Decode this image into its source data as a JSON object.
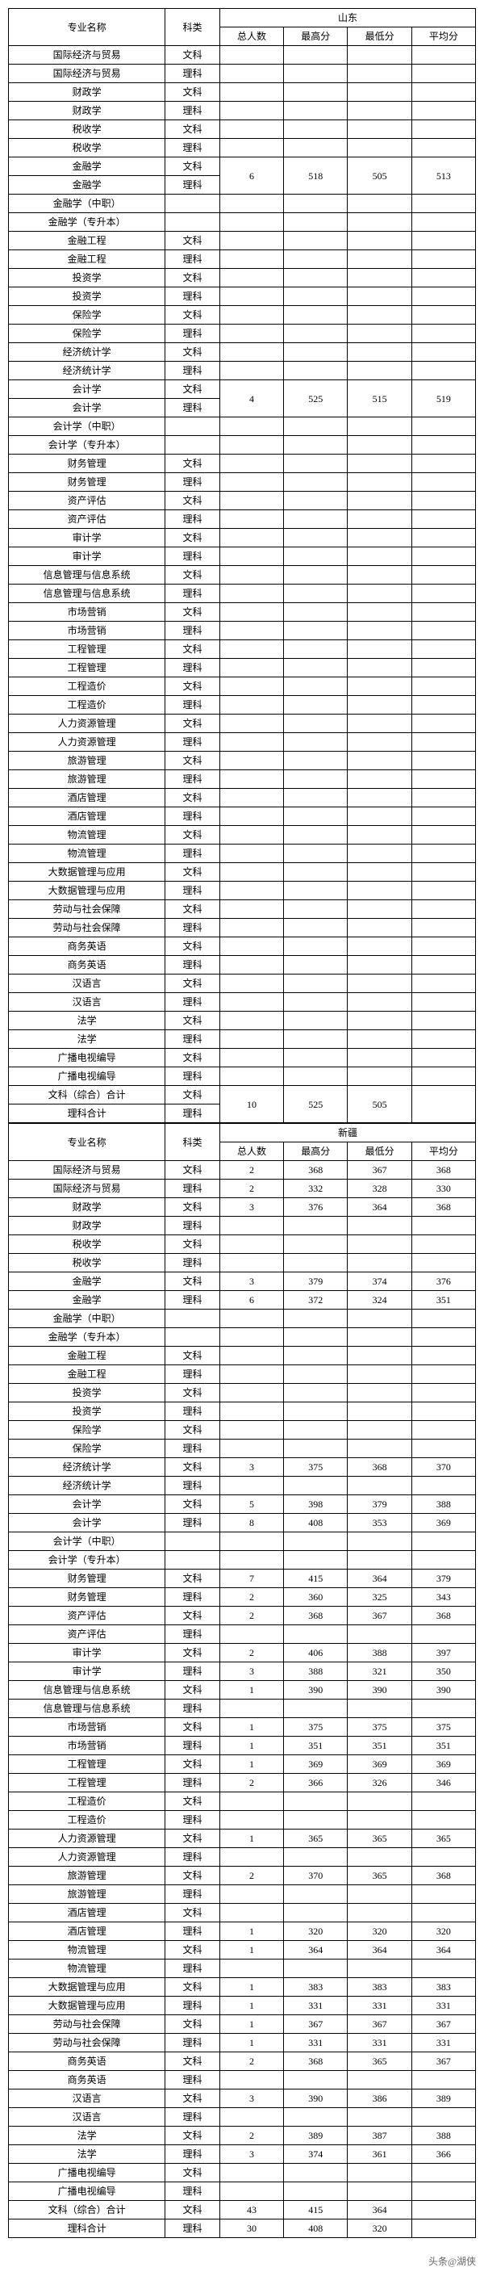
{
  "headers": {
    "major": "专业名称",
    "category": "科类",
    "total": "总人数",
    "max": "最高分",
    "min": "最低分",
    "avg": "平均分"
  },
  "regions": [
    {
      "name": "山东",
      "rows": [
        {
          "major": "国际经济与贸易",
          "cat": "文科",
          "t": "",
          "mx": "",
          "mn": "",
          "av": ""
        },
        {
          "major": "国际经济与贸易",
          "cat": "理科",
          "t": "",
          "mx": "",
          "mn": "",
          "av": ""
        },
        {
          "major": "财政学",
          "cat": "文科",
          "t": "",
          "mx": "",
          "mn": "",
          "av": ""
        },
        {
          "major": "财政学",
          "cat": "理科",
          "t": "",
          "mx": "",
          "mn": "",
          "av": ""
        },
        {
          "major": "税收学",
          "cat": "文科",
          "t": "",
          "mx": "",
          "mn": "",
          "av": ""
        },
        {
          "major": "税收学",
          "cat": "理科",
          "t": "",
          "mx": "",
          "mn": "",
          "av": ""
        },
        {
          "major": "金融学",
          "cat": "文科",
          "t": "6",
          "mx": "518",
          "mn": "505",
          "av": "513",
          "rowspan": 2
        },
        {
          "major": "金融学",
          "cat": "理科"
        },
        {
          "major": "金融学（中职）",
          "cat": "",
          "t": "",
          "mx": "",
          "mn": "",
          "av": ""
        },
        {
          "major": "金融学（专升本）",
          "cat": "",
          "t": "",
          "mx": "",
          "mn": "",
          "av": ""
        },
        {
          "major": "金融工程",
          "cat": "文科",
          "t": "",
          "mx": "",
          "mn": "",
          "av": ""
        },
        {
          "major": "金融工程",
          "cat": "理科",
          "t": "",
          "mx": "",
          "mn": "",
          "av": ""
        },
        {
          "major": "投资学",
          "cat": "文科",
          "t": "",
          "mx": "",
          "mn": "",
          "av": ""
        },
        {
          "major": "投资学",
          "cat": "理科",
          "t": "",
          "mx": "",
          "mn": "",
          "av": ""
        },
        {
          "major": "保险学",
          "cat": "文科",
          "t": "",
          "mx": "",
          "mn": "",
          "av": ""
        },
        {
          "major": "保险学",
          "cat": "理科",
          "t": "",
          "mx": "",
          "mn": "",
          "av": ""
        },
        {
          "major": "经济统计学",
          "cat": "文科",
          "t": "",
          "mx": "",
          "mn": "",
          "av": ""
        },
        {
          "major": "经济统计学",
          "cat": "理科",
          "t": "",
          "mx": "",
          "mn": "",
          "av": ""
        },
        {
          "major": "会计学",
          "cat": "文科",
          "t": "4",
          "mx": "525",
          "mn": "515",
          "av": "519",
          "rowspan": 2
        },
        {
          "major": "会计学",
          "cat": "理科"
        },
        {
          "major": "会计学（中职）",
          "cat": "",
          "t": "",
          "mx": "",
          "mn": "",
          "av": ""
        },
        {
          "major": "会计学（专升本）",
          "cat": "",
          "t": "",
          "mx": "",
          "mn": "",
          "av": ""
        },
        {
          "major": "财务管理",
          "cat": "文科",
          "t": "",
          "mx": "",
          "mn": "",
          "av": ""
        },
        {
          "major": "财务管理",
          "cat": "理科",
          "t": "",
          "mx": "",
          "mn": "",
          "av": ""
        },
        {
          "major": "资产评估",
          "cat": "文科",
          "t": "",
          "mx": "",
          "mn": "",
          "av": ""
        },
        {
          "major": "资产评估",
          "cat": "理科",
          "t": "",
          "mx": "",
          "mn": "",
          "av": ""
        },
        {
          "major": "审计学",
          "cat": "文科",
          "t": "",
          "mx": "",
          "mn": "",
          "av": ""
        },
        {
          "major": "审计学",
          "cat": "理科",
          "t": "",
          "mx": "",
          "mn": "",
          "av": ""
        },
        {
          "major": "信息管理与信息系统",
          "cat": "文科",
          "t": "",
          "mx": "",
          "mn": "",
          "av": ""
        },
        {
          "major": "信息管理与信息系统",
          "cat": "理科",
          "t": "",
          "mx": "",
          "mn": "",
          "av": ""
        },
        {
          "major": "市场营销",
          "cat": "文科",
          "t": "",
          "mx": "",
          "mn": "",
          "av": ""
        },
        {
          "major": "市场营销",
          "cat": "理科",
          "t": "",
          "mx": "",
          "mn": "",
          "av": ""
        },
        {
          "major": "工程管理",
          "cat": "文科",
          "t": "",
          "mx": "",
          "mn": "",
          "av": ""
        },
        {
          "major": "工程管理",
          "cat": "理科",
          "t": "",
          "mx": "",
          "mn": "",
          "av": ""
        },
        {
          "major": "工程造价",
          "cat": "文科",
          "t": "",
          "mx": "",
          "mn": "",
          "av": ""
        },
        {
          "major": "工程造价",
          "cat": "理科",
          "t": "",
          "mx": "",
          "mn": "",
          "av": ""
        },
        {
          "major": "人力资源管理",
          "cat": "文科",
          "t": "",
          "mx": "",
          "mn": "",
          "av": ""
        },
        {
          "major": "人力资源管理",
          "cat": "理科",
          "t": "",
          "mx": "",
          "mn": "",
          "av": ""
        },
        {
          "major": "旅游管理",
          "cat": "文科",
          "t": "",
          "mx": "",
          "mn": "",
          "av": ""
        },
        {
          "major": "旅游管理",
          "cat": "理科",
          "t": "",
          "mx": "",
          "mn": "",
          "av": ""
        },
        {
          "major": "酒店管理",
          "cat": "文科",
          "t": "",
          "mx": "",
          "mn": "",
          "av": ""
        },
        {
          "major": "酒店管理",
          "cat": "理科",
          "t": "",
          "mx": "",
          "mn": "",
          "av": ""
        },
        {
          "major": "物流管理",
          "cat": "文科",
          "t": "",
          "mx": "",
          "mn": "",
          "av": ""
        },
        {
          "major": "物流管理",
          "cat": "理科",
          "t": "",
          "mx": "",
          "mn": "",
          "av": ""
        },
        {
          "major": "大数据管理与应用",
          "cat": "文科",
          "t": "",
          "mx": "",
          "mn": "",
          "av": ""
        },
        {
          "major": "大数据管理与应用",
          "cat": "理科",
          "t": "",
          "mx": "",
          "mn": "",
          "av": ""
        },
        {
          "major": "劳动与社会保障",
          "cat": "文科",
          "t": "",
          "mx": "",
          "mn": "",
          "av": ""
        },
        {
          "major": "劳动与社会保障",
          "cat": "理科",
          "t": "",
          "mx": "",
          "mn": "",
          "av": ""
        },
        {
          "major": "商务英语",
          "cat": "文科",
          "t": "",
          "mx": "",
          "mn": "",
          "av": ""
        },
        {
          "major": "商务英语",
          "cat": "理科",
          "t": "",
          "mx": "",
          "mn": "",
          "av": ""
        },
        {
          "major": "汉语言",
          "cat": "文科",
          "t": "",
          "mx": "",
          "mn": "",
          "av": ""
        },
        {
          "major": "汉语言",
          "cat": "理科",
          "t": "",
          "mx": "",
          "mn": "",
          "av": ""
        },
        {
          "major": "法学",
          "cat": "文科",
          "t": "",
          "mx": "",
          "mn": "",
          "av": ""
        },
        {
          "major": "法学",
          "cat": "理科",
          "t": "",
          "mx": "",
          "mn": "",
          "av": ""
        },
        {
          "major": "广播电视编导",
          "cat": "文科",
          "t": "",
          "mx": "",
          "mn": "",
          "av": ""
        },
        {
          "major": "广播电视编导",
          "cat": "理科",
          "t": "",
          "mx": "",
          "mn": "",
          "av": ""
        },
        {
          "major": "文科（综合）合计",
          "cat": "文科",
          "t": "10",
          "mx": "525",
          "mn": "505",
          "av": "",
          "rowspan": 2
        },
        {
          "major": "理科合计",
          "cat": "理科"
        }
      ]
    },
    {
      "name": "新疆",
      "rows": [
        {
          "major": "国际经济与贸易",
          "cat": "文科",
          "t": "2",
          "mx": "368",
          "mn": "367",
          "av": "368"
        },
        {
          "major": "国际经济与贸易",
          "cat": "理科",
          "t": "2",
          "mx": "332",
          "mn": "328",
          "av": "330"
        },
        {
          "major": "财政学",
          "cat": "文科",
          "t": "3",
          "mx": "376",
          "mn": "364",
          "av": "368"
        },
        {
          "major": "财政学",
          "cat": "理科",
          "t": "",
          "mx": "",
          "mn": "",
          "av": ""
        },
        {
          "major": "税收学",
          "cat": "文科",
          "t": "",
          "mx": "",
          "mn": "",
          "av": ""
        },
        {
          "major": "税收学",
          "cat": "理科",
          "t": "",
          "mx": "",
          "mn": "",
          "av": ""
        },
        {
          "major": "金融学",
          "cat": "文科",
          "t": "3",
          "mx": "379",
          "mn": "374",
          "av": "376"
        },
        {
          "major": "金融学",
          "cat": "理科",
          "t": "6",
          "mx": "372",
          "mn": "324",
          "av": "351"
        },
        {
          "major": "金融学（中职）",
          "cat": "",
          "t": "",
          "mx": "",
          "mn": "",
          "av": ""
        },
        {
          "major": "金融学（专升本）",
          "cat": "",
          "t": "",
          "mx": "",
          "mn": "",
          "av": ""
        },
        {
          "major": "金融工程",
          "cat": "文科",
          "t": "",
          "mx": "",
          "mn": "",
          "av": ""
        },
        {
          "major": "金融工程",
          "cat": "理科",
          "t": "",
          "mx": "",
          "mn": "",
          "av": ""
        },
        {
          "major": "投资学",
          "cat": "文科",
          "t": "",
          "mx": "",
          "mn": "",
          "av": ""
        },
        {
          "major": "投资学",
          "cat": "理科",
          "t": "",
          "mx": "",
          "mn": "",
          "av": ""
        },
        {
          "major": "保险学",
          "cat": "文科",
          "t": "",
          "mx": "",
          "mn": "",
          "av": ""
        },
        {
          "major": "保险学",
          "cat": "理科",
          "t": "",
          "mx": "",
          "mn": "",
          "av": ""
        },
        {
          "major": "经济统计学",
          "cat": "文科",
          "t": "3",
          "mx": "375",
          "mn": "368",
          "av": "370"
        },
        {
          "major": "经济统计学",
          "cat": "理科",
          "t": "",
          "mx": "",
          "mn": "",
          "av": ""
        },
        {
          "major": "会计学",
          "cat": "文科",
          "t": "5",
          "mx": "398",
          "mn": "379",
          "av": "388"
        },
        {
          "major": "会计学",
          "cat": "理科",
          "t": "8",
          "mx": "408",
          "mn": "353",
          "av": "369"
        },
        {
          "major": "会计学（中职）",
          "cat": "",
          "t": "",
          "mx": "",
          "mn": "",
          "av": ""
        },
        {
          "major": "会计学（专升本）",
          "cat": "",
          "t": "",
          "mx": "",
          "mn": "",
          "av": ""
        },
        {
          "major": "财务管理",
          "cat": "文科",
          "t": "7",
          "mx": "415",
          "mn": "364",
          "av": "379"
        },
        {
          "major": "财务管理",
          "cat": "理科",
          "t": "2",
          "mx": "360",
          "mn": "325",
          "av": "343"
        },
        {
          "major": "资产评估",
          "cat": "文科",
          "t": "2",
          "mx": "368",
          "mn": "367",
          "av": "368"
        },
        {
          "major": "资产评估",
          "cat": "理科",
          "t": "",
          "mx": "",
          "mn": "",
          "av": ""
        },
        {
          "major": "审计学",
          "cat": "文科",
          "t": "2",
          "mx": "406",
          "mn": "388",
          "av": "397"
        },
        {
          "major": "审计学",
          "cat": "理科",
          "t": "3",
          "mx": "388",
          "mn": "321",
          "av": "350"
        },
        {
          "major": "信息管理与信息系统",
          "cat": "文科",
          "t": "1",
          "mx": "390",
          "mn": "390",
          "av": "390"
        },
        {
          "major": "信息管理与信息系统",
          "cat": "理科",
          "t": "",
          "mx": "",
          "mn": "",
          "av": ""
        },
        {
          "major": "市场营销",
          "cat": "文科",
          "t": "1",
          "mx": "375",
          "mn": "375",
          "av": "375"
        },
        {
          "major": "市场营销",
          "cat": "理科",
          "t": "1",
          "mx": "351",
          "mn": "351",
          "av": "351"
        },
        {
          "major": "工程管理",
          "cat": "文科",
          "t": "1",
          "mx": "369",
          "mn": "369",
          "av": "369"
        },
        {
          "major": "工程管理",
          "cat": "理科",
          "t": "2",
          "mx": "366",
          "mn": "326",
          "av": "346"
        },
        {
          "major": "工程造价",
          "cat": "文科",
          "t": "",
          "mx": "",
          "mn": "",
          "av": ""
        },
        {
          "major": "工程造价",
          "cat": "理科",
          "t": "",
          "mx": "",
          "mn": "",
          "av": ""
        },
        {
          "major": "人力资源管理",
          "cat": "文科",
          "t": "1",
          "mx": "365",
          "mn": "365",
          "av": "365"
        },
        {
          "major": "人力资源管理",
          "cat": "理科",
          "t": "",
          "mx": "",
          "mn": "",
          "av": ""
        },
        {
          "major": "旅游管理",
          "cat": "文科",
          "t": "2",
          "mx": "370",
          "mn": "365",
          "av": "368"
        },
        {
          "major": "旅游管理",
          "cat": "理科",
          "t": "",
          "mx": "",
          "mn": "",
          "av": ""
        },
        {
          "major": "酒店管理",
          "cat": "文科",
          "t": "",
          "mx": "",
          "mn": "",
          "av": ""
        },
        {
          "major": "酒店管理",
          "cat": "理科",
          "t": "1",
          "mx": "320",
          "mn": "320",
          "av": "320"
        },
        {
          "major": "物流管理",
          "cat": "文科",
          "t": "1",
          "mx": "364",
          "mn": "364",
          "av": "364"
        },
        {
          "major": "物流管理",
          "cat": "理科",
          "t": "",
          "mx": "",
          "mn": "",
          "av": ""
        },
        {
          "major": "大数据管理与应用",
          "cat": "文科",
          "t": "1",
          "mx": "383",
          "mn": "383",
          "av": "383"
        },
        {
          "major": "大数据管理与应用",
          "cat": "理科",
          "t": "1",
          "mx": "331",
          "mn": "331",
          "av": "331"
        },
        {
          "major": "劳动与社会保障",
          "cat": "文科",
          "t": "1",
          "mx": "367",
          "mn": "367",
          "av": "367"
        },
        {
          "major": "劳动与社会保障",
          "cat": "理科",
          "t": "1",
          "mx": "331",
          "mn": "331",
          "av": "331"
        },
        {
          "major": "商务英语",
          "cat": "文科",
          "t": "2",
          "mx": "368",
          "mn": "365",
          "av": "367"
        },
        {
          "major": "商务英语",
          "cat": "理科",
          "t": "",
          "mx": "",
          "mn": "",
          "av": ""
        },
        {
          "major": "汉语言",
          "cat": "文科",
          "t": "3",
          "mx": "390",
          "mn": "386",
          "av": "389"
        },
        {
          "major": "汉语言",
          "cat": "理科",
          "t": "",
          "mx": "",
          "mn": "",
          "av": ""
        },
        {
          "major": "法学",
          "cat": "文科",
          "t": "2",
          "mx": "389",
          "mn": "387",
          "av": "388"
        },
        {
          "major": "法学",
          "cat": "理科",
          "t": "3",
          "mx": "374",
          "mn": "361",
          "av": "366"
        },
        {
          "major": "广播电视编导",
          "cat": "文科",
          "t": "",
          "mx": "",
          "mn": "",
          "av": ""
        },
        {
          "major": "广播电视编导",
          "cat": "理科",
          "t": "",
          "mx": "",
          "mn": "",
          "av": ""
        },
        {
          "major": "文科（综合）合计",
          "cat": "文科",
          "t": "43",
          "mx": "415",
          "mn": "364",
          "av": ""
        },
        {
          "major": "理科合计",
          "cat": "理科",
          "t": "30",
          "mx": "408",
          "mn": "320",
          "av": ""
        }
      ]
    }
  ],
  "footer": "头条@湖侠"
}
